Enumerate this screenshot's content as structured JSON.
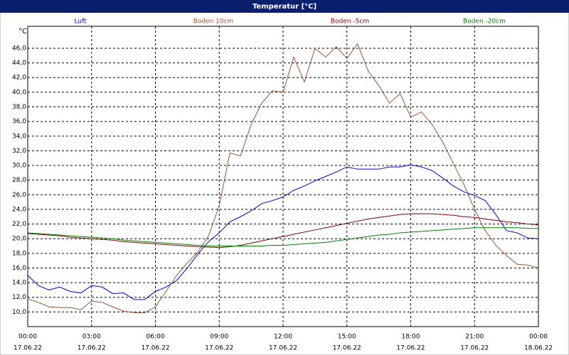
{
  "chart_data": {
    "type": "line",
    "title": "Temperatur [°C]",
    "y_unit": "°C",
    "x": [
      0,
      0.5,
      1,
      1.5,
      2,
      2.5,
      3,
      3.5,
      4,
      4.5,
      5,
      5.5,
      6,
      6.5,
      7,
      7.5,
      8,
      8.5,
      9,
      9.5,
      10,
      10.5,
      11,
      11.5,
      12,
      12.5,
      13,
      13.5,
      14,
      14.5,
      15,
      15.5,
      16,
      16.5,
      17,
      17.5,
      18,
      18.5,
      19,
      19.5,
      20,
      20.5,
      21,
      21.5,
      22,
      22.5,
      23,
      23.5,
      24
    ],
    "xlim": [
      0,
      24
    ],
    "xticks": [
      {
        "value": 0,
        "label": "00:00"
      },
      {
        "value": 3,
        "label": "03:00"
      },
      {
        "value": 6,
        "label": "06:00"
      },
      {
        "value": 9,
        "label": "09:00"
      },
      {
        "value": 12,
        "label": "12:00"
      },
      {
        "value": 15,
        "label": "15:00"
      },
      {
        "value": 18,
        "label": "18:00"
      },
      {
        "value": 21,
        "label": "21:00"
      },
      {
        "value": 24,
        "label": "00:00"
      }
    ],
    "xtick_dates": [
      "17.06.22",
      "17.06.22",
      "17.06.22",
      "17.06.22",
      "17.06.22",
      "17.06.22",
      "17.06.22",
      "17.06.22",
      "18.06.22"
    ],
    "ylim": [
      8,
      49
    ],
    "yticks": [
      {
        "value": 10,
        "label": "10,0"
      },
      {
        "value": 12,
        "label": "12,0"
      },
      {
        "value": 14,
        "label": "14,0"
      },
      {
        "value": 16,
        "label": "16,0"
      },
      {
        "value": 18,
        "label": "18,0"
      },
      {
        "value": 20,
        "label": "20,0"
      },
      {
        "value": 22,
        "label": "22,0"
      },
      {
        "value": 24,
        "label": "24,0"
      },
      {
        "value": 26,
        "label": "26,0"
      },
      {
        "value": 28,
        "label": "28,0"
      },
      {
        "value": 30,
        "label": "30,0"
      },
      {
        "value": 32,
        "label": "32,0"
      },
      {
        "value": 34,
        "label": "34,0"
      },
      {
        "value": 36,
        "label": "36,0"
      },
      {
        "value": 38,
        "label": "38,0"
      },
      {
        "value": 40,
        "label": "40,0"
      },
      {
        "value": 42,
        "label": "42,0"
      },
      {
        "value": 44,
        "label": "44,0"
      },
      {
        "value": 46,
        "label": "46,0"
      }
    ],
    "grid": true,
    "series": [
      {
        "name": "Luft",
        "color": "#0000e0",
        "values": [
          15.0,
          13.6,
          13.0,
          13.4,
          12.8,
          12.6,
          13.6,
          13.4,
          12.5,
          12.6,
          11.7,
          11.7,
          12.8,
          13.4,
          14.3,
          16.0,
          17.9,
          19.6,
          20.8,
          22.3,
          23.0,
          23.8,
          24.8,
          25.2,
          25.7,
          26.6,
          27.2,
          27.9,
          28.5,
          29.1,
          29.8,
          29.5,
          29.5,
          29.5,
          29.8,
          29.8,
          30.1,
          29.8,
          29.3,
          28.3,
          27.2,
          26.4,
          25.9,
          25.2,
          23.3,
          21.1,
          20.8,
          20.1,
          20.0
        ]
      },
      {
        "name": "Boden 10cm",
        "color": "#a0522d",
        "values": [
          11.8,
          11.3,
          10.7,
          10.6,
          10.6,
          10.3,
          11.5,
          11.3,
          10.7,
          10.1,
          9.9,
          9.9,
          10.7,
          12.8,
          15.0,
          16.7,
          18.2,
          20.4,
          24.5,
          31.7,
          31.3,
          35.6,
          38.5,
          40.2,
          40.0,
          44.8,
          41.4,
          46.0,
          44.8,
          46.2,
          44.6,
          46.6,
          42.9,
          40.9,
          38.5,
          39.8,
          36.6,
          37.3,
          35.6,
          33.2,
          30.3,
          27.4,
          24.0,
          21.1,
          19.1,
          17.7,
          16.5,
          16.4,
          16.0
        ]
      },
      {
        "name": "Boden -5cm",
        "color": "#800000",
        "values": [
          20.7,
          20.6,
          20.5,
          20.4,
          20.2,
          20.1,
          20.0,
          19.9,
          19.8,
          19.6,
          19.5,
          19.4,
          19.3,
          19.2,
          19.1,
          19.0,
          18.9,
          18.85,
          18.8,
          18.9,
          19.1,
          19.4,
          19.7,
          20.0,
          20.3,
          20.6,
          20.9,
          21.2,
          21.5,
          21.8,
          22.1,
          22.4,
          22.7,
          22.9,
          23.1,
          23.3,
          23.4,
          23.4,
          23.4,
          23.3,
          23.2,
          23.0,
          22.9,
          22.7,
          22.5,
          22.3,
          22.2,
          22.0,
          21.9
        ]
      },
      {
        "name": "Boden -20cm",
        "color": "#008000",
        "values": [
          20.8,
          20.7,
          20.6,
          20.5,
          20.4,
          20.3,
          20.2,
          20.1,
          20.0,
          19.8,
          19.7,
          19.6,
          19.5,
          19.4,
          19.3,
          19.2,
          19.1,
          19.0,
          19.0,
          19.0,
          19.0,
          19.0,
          19.0,
          19.1,
          19.1,
          19.2,
          19.3,
          19.4,
          19.5,
          19.7,
          19.9,
          20.1,
          20.3,
          20.5,
          20.6,
          20.8,
          20.9,
          21.0,
          21.1,
          21.2,
          21.3,
          21.4,
          21.5,
          21.5,
          21.5,
          21.5,
          21.5,
          21.4,
          21.4
        ]
      }
    ]
  }
}
